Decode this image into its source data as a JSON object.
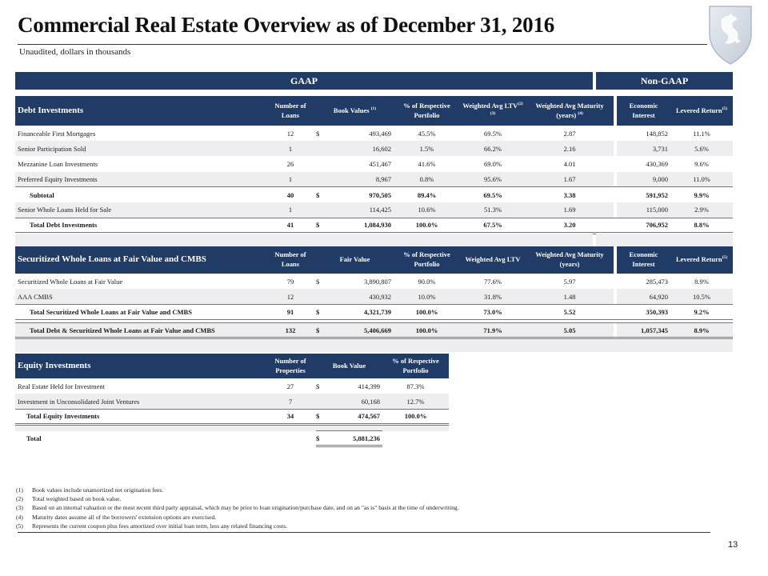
{
  "header": {
    "title": "Commercial Real Estate Overview as of December 31, 2016",
    "subtitle": "Unaudited, dollars in thousands"
  },
  "bands": {
    "gaap": "GAAP",
    "non_gaap": "Non-GAAP"
  },
  "debt": {
    "section": "Debt Investments",
    "h_num": "Number of Loans",
    "h_book": "Book Values",
    "h_book_sup": "(1)",
    "h_pct": "% of Respective Portfolio",
    "h_ltv": "Weighted Avg LTV",
    "h_ltv_sup": "(2) (3)",
    "h_mat": "Weighted Avg Maturity (years)",
    "h_mat_sup": "(4)",
    "h_econ": "Economic Interest",
    "h_lev": "Levered Return",
    "h_lev_sup": "(5)",
    "rows": [
      {
        "label": "Financeable First Mortgages",
        "num": "12",
        "dollar": "$",
        "book": "493,469",
        "pct": "45.5%",
        "ltv": "69.5%",
        "mat": "2.87",
        "econ": "148,852",
        "lev": "11.1%"
      },
      {
        "label": "Senior Participation Sold",
        "num": "1",
        "dollar": "",
        "book": "16,602",
        "pct": "1.5%",
        "ltv": "66.2%",
        "mat": "2.16",
        "econ": "3,731",
        "lev": "5.6%"
      },
      {
        "label": "Mezzanine Loan Investments",
        "num": "26",
        "dollar": "",
        "book": "451,467",
        "pct": "41.6%",
        "ltv": "69.0%",
        "mat": "4.01",
        "econ": "430,369",
        "lev": "9.6%"
      },
      {
        "label": "Preferred Equity Investments",
        "num": "1",
        "dollar": "",
        "book": "8,967",
        "pct": "0.8%",
        "ltv": "95.6%",
        "mat": "1.67",
        "econ": "9,000",
        "lev": "11.0%"
      },
      {
        "label": "Subtotal",
        "num": "40",
        "dollar": "$",
        "book": "970,505",
        "pct": "89.4%",
        "ltv": "69.5%",
        "mat": "3.38",
        "econ": "591,952",
        "lev": "9.9%"
      },
      {
        "label": "Senior Whole Loans Held for Sale",
        "num": "1",
        "dollar": "",
        "book": "114,425",
        "pct": "10.6%",
        "ltv": "51.3%",
        "mat": "1.69",
        "econ": "115,000",
        "lev": "2.9%"
      },
      {
        "label": "Total Debt Investments",
        "num": "41",
        "dollar": "$",
        "book": "1,084,930",
        "pct": "100.0%",
        "ltv": "67.5%",
        "mat": "3.20",
        "econ": "706,952",
        "lev": "8.8%"
      }
    ]
  },
  "securitized": {
    "section": "Securitized Whole Loans at Fair Value and CMBS",
    "h_num": "Number of Loans",
    "h_fv": "Fair Value",
    "h_pct": "% of Respective Portfolio",
    "h_ltv": "Weighted Avg LTV",
    "h_mat": "Weighted Avg Maturity (years)",
    "h_econ": "Economic Interest",
    "h_lev": "Levered Return",
    "h_lev_sup": "(5)",
    "rows": [
      {
        "label": "Securitized Whole Loans at Fair Value",
        "num": "79",
        "dollar": "$",
        "fv": "3,890,807",
        "pct": "90.0%",
        "ltv": "77.6%",
        "mat": "5.97",
        "econ": "285,473",
        "lev": "8.9%"
      },
      {
        "label": "AAA CMBS",
        "num": "12",
        "dollar": "",
        "fv": "430,932",
        "pct": "10.0%",
        "ltv": "31.8%",
        "mat": "1.48",
        "econ": "64,920",
        "lev": "10.5%"
      },
      {
        "label": "Total Securitized Whole Loans at Fair Value and CMBS",
        "num": "91",
        "dollar": "$",
        "fv": "4,321,739",
        "pct": "100.0%",
        "ltv": "73.0%",
        "mat": "5.52",
        "econ": "350,393",
        "lev": "9.2%"
      },
      {
        "label": "Total Debt & Securitized Whole Loans at Fair Value and CMBS",
        "num": "132",
        "dollar": "$",
        "fv": "5,406,669",
        "pct": "100.0%",
        "ltv": "71.9%",
        "mat": "5.05",
        "econ": "1,057,345",
        "lev": "8.9%"
      }
    ]
  },
  "equity": {
    "section": "Equity Investments",
    "h_num": "Number of Properties",
    "h_book": "Book Value",
    "h_pct": "% of Respective Portfolio",
    "rows": [
      {
        "label": "Real Estate Held for Investment",
        "num": "27",
        "dollar": "$",
        "book": "414,399",
        "pct": "87.3%"
      },
      {
        "label": "Investment in Unconsolidated Joint Ventures",
        "num": "7",
        "dollar": "",
        "book": "60,168",
        "pct": "12.7%"
      },
      {
        "label": "Total Equity Investments",
        "num": "34",
        "dollar": "$",
        "book": "474,567",
        "pct": "100.0%"
      }
    ],
    "total_label": "Total",
    "total_dollar": "$",
    "total_value": "5,881,236"
  },
  "footnotes": [
    {
      "num": "(1)",
      "text": "Book values include unamortized net origination fees."
    },
    {
      "num": "(2)",
      "text": "Total weighted based on book value."
    },
    {
      "num": "(3)",
      "text": "Based on an internal valuation or the most recent third party appraisal, which may be prior to loan origination/purchase date, and on an \"as is\" basis at the time of underwriting."
    },
    {
      "num": "(4)",
      "text": "Maturity dates assume all of the borrowers' extension options are exercised."
    },
    {
      "num": "(5)",
      "text": "Represents the current coupon plus fees amortized over initial loan term, less any related financing costs."
    }
  ],
  "page_number": "13",
  "colors": {
    "navy": "#1f3b66",
    "band": "#eeeef0"
  }
}
